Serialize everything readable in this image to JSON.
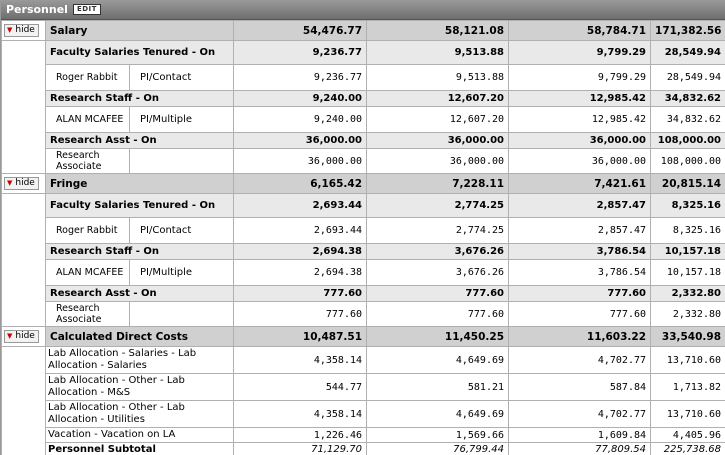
{
  "header": {
    "title": "Personnel",
    "edit_label": "EDIT"
  },
  "hide_label": "hide",
  "salary": {
    "label": "Salary",
    "totals": [
      "54,476.77",
      "58,121.08",
      "58,784.71",
      "171,382.56"
    ],
    "fst": {
      "label": "Faculty Salaries Tenured - On",
      "totals": [
        "9,236.77",
        "9,513.88",
        "9,799.29",
        "28,549.94"
      ],
      "person": {
        "name": "Roger Rabbit",
        "role": "PI/Contact",
        "values": [
          "9,236.77",
          "9,513.88",
          "9,799.29",
          "28,549.94"
        ]
      }
    },
    "rs": {
      "label": "Research Staff - On",
      "totals": [
        "9,240.00",
        "12,607.20",
        "12,985.42",
        "34,832.62"
      ],
      "person": {
        "name": "ALAN MCAFEE",
        "role": "PI/Multiple",
        "values": [
          "9,240.00",
          "12,607.20",
          "12,985.42",
          "34,832.62"
        ]
      }
    },
    "ra": {
      "label": "Research Asst - On",
      "totals": [
        "36,000.00",
        "36,000.00",
        "36,000.00",
        "108,000.00"
      ],
      "person": {
        "name": "Research Associate",
        "role": "",
        "values": [
          "36,000.00",
          "36,000.00",
          "36,000.00",
          "108,000.00"
        ]
      }
    }
  },
  "fringe": {
    "label": "Fringe",
    "totals": [
      "6,165.42",
      "7,228.11",
      "7,421.61",
      "20,815.14"
    ],
    "fst": {
      "label": "Faculty Salaries Tenured - On",
      "totals": [
        "2,693.44",
        "2,774.25",
        "2,857.47",
        "8,325.16"
      ],
      "person": {
        "name": "Roger Rabbit",
        "role": "PI/Contact",
        "values": [
          "2,693.44",
          "2,774.25",
          "2,857.47",
          "8,325.16"
        ]
      }
    },
    "rs": {
      "label": "Research Staff - On",
      "totals": [
        "2,694.38",
        "3,676.26",
        "3,786.54",
        "10,157.18"
      ],
      "person": {
        "name": "ALAN MCAFEE",
        "role": "PI/Multiple",
        "values": [
          "2,694.38",
          "3,676.26",
          "3,786.54",
          "10,157.18"
        ]
      }
    },
    "ra": {
      "label": "Research Asst - On",
      "totals": [
        "777.60",
        "777.60",
        "777.60",
        "2,332.80"
      ],
      "person": {
        "name": "Research Associate",
        "role": "",
        "values": [
          "777.60",
          "777.60",
          "777.60",
          "2,332.80"
        ]
      }
    }
  },
  "cdc": {
    "label": "Calculated Direct Costs",
    "totals": [
      "10,487.51",
      "11,450.25",
      "11,603.22",
      "33,540.98"
    ],
    "items": [
      {
        "label": "Lab Allocation - Salaries - Lab Allocation - Salaries",
        "values": [
          "4,358.14",
          "4,649.69",
          "4,702.77",
          "13,710.60"
        ]
      },
      {
        "label": "Lab Allocation - Other - Lab Allocation - M&S",
        "values": [
          "544.77",
          "581.21",
          "587.84",
          "1,713.82"
        ]
      },
      {
        "label": "Lab Allocation - Other - Lab Allocation - Utilities",
        "values": [
          "4,358.14",
          "4,649.69",
          "4,702.77",
          "13,710.60"
        ]
      },
      {
        "label": "Vacation - Vacation on LA",
        "values": [
          "1,226.46",
          "1,569.66",
          "1,609.84",
          "4,405.96"
        ]
      }
    ]
  },
  "subtotal": {
    "label": "Personnel Subtotal",
    "values": [
      "71,129.70",
      "76,799.44",
      "77,809.54",
      "225,738.68"
    ]
  },
  "colors": {
    "section_bg": "#d0d0d0",
    "group_bg": "#e9e9e9",
    "header_bg": "#7f7f7f",
    "hide_arrow": "#cc0000"
  }
}
